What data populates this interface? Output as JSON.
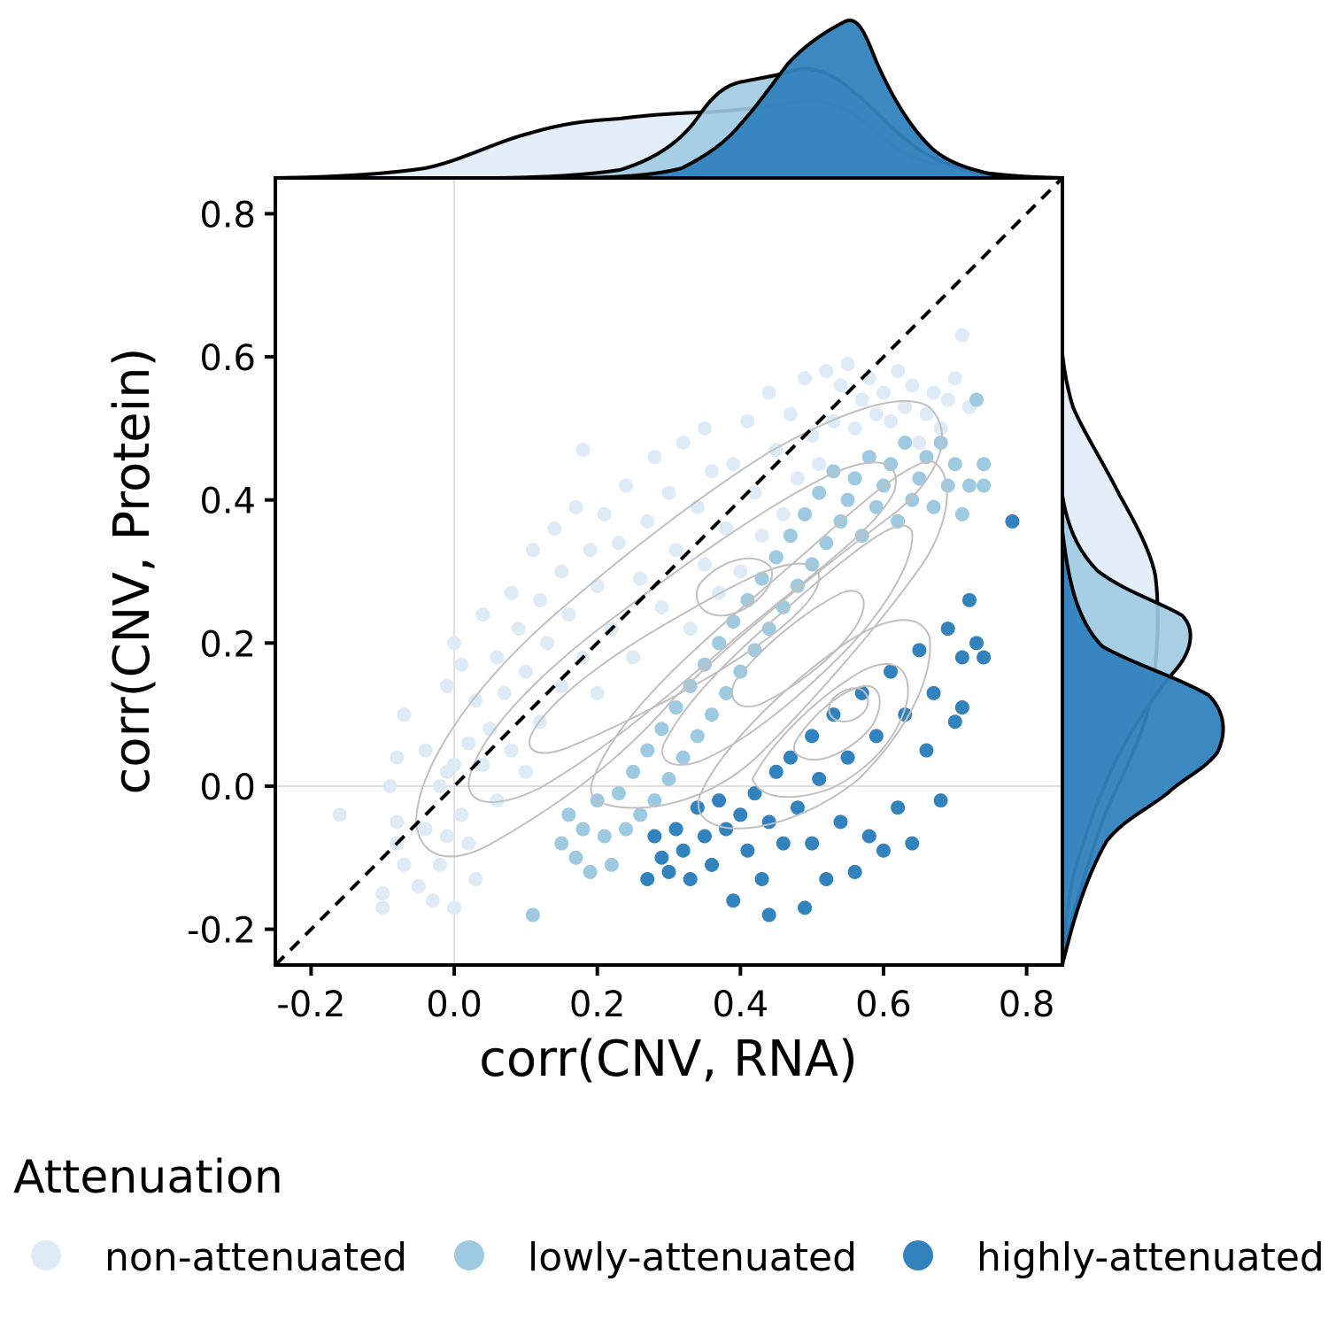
{
  "chart_data": {
    "type": "scatter",
    "xlabel": "corr(CNV, RNA)",
    "ylabel": "corr(CNV, Protein)",
    "xlim": [
      -0.25,
      0.85
    ],
    "ylim": [
      -0.25,
      0.85
    ],
    "x_ticks": [
      -0.2,
      0.0,
      0.2,
      0.4,
      0.6,
      0.8
    ],
    "y_ticks": [
      -0.2,
      0.0,
      0.2,
      0.4,
      0.6,
      0.8
    ],
    "x_tick_labels": [
      "-0.2",
      "0.0",
      "0.2",
      "0.4",
      "0.6",
      "0.8"
    ],
    "y_tick_labels": [
      "-0.2",
      "0.0",
      "0.2",
      "0.4",
      "0.6",
      "0.8"
    ],
    "reference_line": "y = x (dashed)",
    "reference_gridlines": {
      "x": 0.0,
      "y": 0.0
    },
    "density_contours": true,
    "marginal_density": {
      "top": "corr(CNV, RNA)",
      "right": "corr(CNV, Protein)"
    },
    "legend": {
      "title": "Attenuation",
      "placement": "bottom"
    },
    "series": [
      {
        "name": "non-attenuated",
        "color": "#deebf7",
        "points": [
          [
            -0.16,
            -0.04
          ],
          [
            -0.1,
            -0.17
          ],
          [
            -0.1,
            -0.15
          ],
          [
            -0.09,
            0.0
          ],
          [
            -0.08,
            -0.08
          ],
          [
            -0.08,
            -0.05
          ],
          [
            -0.08,
            0.04
          ],
          [
            -0.07,
            0.1
          ],
          [
            -0.07,
            -0.11
          ],
          [
            -0.05,
            -0.14
          ],
          [
            -0.04,
            -0.06
          ],
          [
            -0.04,
            0.05
          ],
          [
            -0.03,
            -0.16
          ],
          [
            -0.02,
            0.0
          ],
          [
            -0.02,
            -0.11
          ],
          [
            -0.01,
            0.14
          ],
          [
            -0.01,
            0.02
          ],
          [
            -0.01,
            -0.07
          ],
          [
            0.0,
            -0.17
          ],
          [
            0.0,
            0.2
          ],
          [
            0.0,
            0.03
          ],
          [
            0.01,
            0.17
          ],
          [
            0.01,
            -0.04
          ],
          [
            0.02,
            0.06
          ],
          [
            0.02,
            -0.08
          ],
          [
            0.03,
            -0.13
          ],
          [
            0.03,
            0.12
          ],
          [
            0.04,
            0.03
          ],
          [
            0.04,
            0.24
          ],
          [
            0.05,
            0.08
          ],
          [
            0.06,
            -0.02
          ],
          [
            0.06,
            0.18
          ],
          [
            0.07,
            0.13
          ],
          [
            0.08,
            0.27
          ],
          [
            0.08,
            0.05
          ],
          [
            0.09,
            0.22
          ],
          [
            0.1,
            0.02
          ],
          [
            0.1,
            0.16
          ],
          [
            0.11,
            0.33
          ],
          [
            0.12,
            0.09
          ],
          [
            0.12,
            0.26
          ],
          [
            0.13,
            0.2
          ],
          [
            0.14,
            0.36
          ],
          [
            0.15,
            0.14
          ],
          [
            0.15,
            0.3
          ],
          [
            0.16,
            0.24
          ],
          [
            0.17,
            0.39
          ],
          [
            0.18,
            0.47
          ],
          [
            0.18,
            0.18
          ],
          [
            0.19,
            0.33
          ],
          [
            0.2,
            0.13
          ],
          [
            0.2,
            0.28
          ],
          [
            0.21,
            0.38
          ],
          [
            0.22,
            0.22
          ],
          [
            0.23,
            0.34
          ],
          [
            0.24,
            0.42
          ],
          [
            0.25,
            0.18
          ],
          [
            0.26,
            0.29
          ],
          [
            0.27,
            0.37
          ],
          [
            0.28,
            0.46
          ],
          [
            0.29,
            0.25
          ],
          [
            0.3,
            0.41
          ],
          [
            0.31,
            0.33
          ],
          [
            0.32,
            0.48
          ],
          [
            0.33,
            0.22
          ],
          [
            0.34,
            0.39
          ],
          [
            0.35,
            0.31
          ],
          [
            0.35,
            0.5
          ],
          [
            0.36,
            0.44
          ],
          [
            0.37,
            0.27
          ],
          [
            0.38,
            0.36
          ],
          [
            0.39,
            0.45
          ],
          [
            0.4,
            0.3
          ],
          [
            0.41,
            0.51
          ],
          [
            0.42,
            0.41
          ],
          [
            0.43,
            0.35
          ],
          [
            0.44,
            0.55
          ],
          [
            0.45,
            0.47
          ],
          [
            0.46,
            0.38
          ],
          [
            0.47,
            0.52
          ],
          [
            0.48,
            0.43
          ],
          [
            0.49,
            0.57
          ],
          [
            0.5,
            0.49
          ],
          [
            0.51,
            0.45
          ],
          [
            0.52,
            0.58
          ],
          [
            0.53,
            0.51
          ],
          [
            0.54,
            0.56
          ],
          [
            0.55,
            0.59
          ],
          [
            0.56,
            0.5
          ],
          [
            0.57,
            0.54
          ],
          [
            0.58,
            0.57
          ],
          [
            0.59,
            0.52
          ],
          [
            0.6,
            0.55
          ],
          [
            0.61,
            0.51
          ],
          [
            0.62,
            0.58
          ],
          [
            0.63,
            0.53
          ],
          [
            0.64,
            0.56
          ],
          [
            0.65,
            0.48
          ],
          [
            0.66,
            0.52
          ],
          [
            0.67,
            0.55
          ],
          [
            0.68,
            0.5
          ],
          [
            0.69,
            0.54
          ],
          [
            0.7,
            0.57
          ],
          [
            0.71,
            0.63
          ],
          [
            0.72,
            0.53
          ]
        ]
      },
      {
        "name": "lowly-attenuated",
        "color": "#9ecae1",
        "points": [
          [
            0.11,
            -0.18
          ],
          [
            0.15,
            -0.08
          ],
          [
            0.16,
            -0.04
          ],
          [
            0.17,
            -0.1
          ],
          [
            0.18,
            -0.06
          ],
          [
            0.19,
            -0.12
          ],
          [
            0.2,
            -0.02
          ],
          [
            0.21,
            -0.07
          ],
          [
            0.22,
            -0.11
          ],
          [
            0.23,
            -0.01
          ],
          [
            0.24,
            -0.06
          ],
          [
            0.25,
            0.02
          ],
          [
            0.26,
            -0.04
          ],
          [
            0.27,
            0.05
          ],
          [
            0.28,
            -0.02
          ],
          [
            0.29,
            0.08
          ],
          [
            0.3,
            0.01
          ],
          [
            0.31,
            0.11
          ],
          [
            0.32,
            0.04
          ],
          [
            0.33,
            0.14
          ],
          [
            0.34,
            0.07
          ],
          [
            0.35,
            0.17
          ],
          [
            0.36,
            0.1
          ],
          [
            0.37,
            0.2
          ],
          [
            0.38,
            0.13
          ],
          [
            0.39,
            0.23
          ],
          [
            0.4,
            0.16
          ],
          [
            0.41,
            0.26
          ],
          [
            0.42,
            0.19
          ],
          [
            0.43,
            0.29
          ],
          [
            0.44,
            0.22
          ],
          [
            0.45,
            0.32
          ],
          [
            0.46,
            0.25
          ],
          [
            0.47,
            0.35
          ],
          [
            0.48,
            0.28
          ],
          [
            0.49,
            0.38
          ],
          [
            0.5,
            0.31
          ],
          [
            0.51,
            0.41
          ],
          [
            0.52,
            0.34
          ],
          [
            0.53,
            0.44
          ],
          [
            0.54,
            0.37
          ],
          [
            0.55,
            0.4
          ],
          [
            0.56,
            0.43
          ],
          [
            0.57,
            0.35
          ],
          [
            0.58,
            0.46
          ],
          [
            0.59,
            0.39
          ],
          [
            0.6,
            0.42
          ],
          [
            0.61,
            0.45
          ],
          [
            0.62,
            0.37
          ],
          [
            0.63,
            0.48
          ],
          [
            0.64,
            0.4
          ],
          [
            0.65,
            0.43
          ],
          [
            0.66,
            0.46
          ],
          [
            0.67,
            0.39
          ],
          [
            0.68,
            0.48
          ],
          [
            0.69,
            0.42
          ],
          [
            0.7,
            0.45
          ],
          [
            0.71,
            0.38
          ],
          [
            0.72,
            0.42
          ],
          [
            0.73,
            0.54
          ],
          [
            0.74,
            0.45
          ],
          [
            0.74,
            0.42
          ]
        ]
      },
      {
        "name": "highly-attenuated",
        "color": "#3182bd",
        "points": [
          [
            0.27,
            -0.13
          ],
          [
            0.28,
            -0.07
          ],
          [
            0.29,
            -0.1
          ],
          [
            0.3,
            -0.12
          ],
          [
            0.31,
            -0.06
          ],
          [
            0.32,
            -0.09
          ],
          [
            0.33,
            -0.13
          ],
          [
            0.34,
            -0.03
          ],
          [
            0.35,
            -0.07
          ],
          [
            0.36,
            -0.11
          ],
          [
            0.37,
            -0.02
          ],
          [
            0.38,
            -0.06
          ],
          [
            0.39,
            -0.16
          ],
          [
            0.4,
            -0.04
          ],
          [
            0.41,
            -0.09
          ],
          [
            0.42,
            -0.01
          ],
          [
            0.43,
            -0.13
          ],
          [
            0.44,
            -0.05
          ],
          [
            0.44,
            -0.18
          ],
          [
            0.45,
            0.02
          ],
          [
            0.46,
            -0.08
          ],
          [
            0.47,
            0.04
          ],
          [
            0.48,
            -0.03
          ],
          [
            0.49,
            -0.17
          ],
          [
            0.5,
            0.07
          ],
          [
            0.5,
            -0.08
          ],
          [
            0.51,
            0.01
          ],
          [
            0.52,
            -0.13
          ],
          [
            0.53,
            0.1
          ],
          [
            0.54,
            -0.05
          ],
          [
            0.55,
            0.04
          ],
          [
            0.56,
            -0.12
          ],
          [
            0.57,
            0.13
          ],
          [
            0.58,
            -0.07
          ],
          [
            0.59,
            0.07
          ],
          [
            0.6,
            -0.09
          ],
          [
            0.61,
            0.16
          ],
          [
            0.62,
            -0.03
          ],
          [
            0.63,
            0.1
          ],
          [
            0.64,
            -0.08
          ],
          [
            0.65,
            0.19
          ],
          [
            0.66,
            0.05
          ],
          [
            0.67,
            0.13
          ],
          [
            0.68,
            -0.02
          ],
          [
            0.69,
            0.22
          ],
          [
            0.7,
            0.09
          ],
          [
            0.71,
            0.18
          ],
          [
            0.71,
            0.11
          ],
          [
            0.72,
            0.26
          ],
          [
            0.73,
            0.2
          ],
          [
            0.74,
            0.18
          ],
          [
            0.78,
            0.37
          ]
        ]
      }
    ]
  }
}
